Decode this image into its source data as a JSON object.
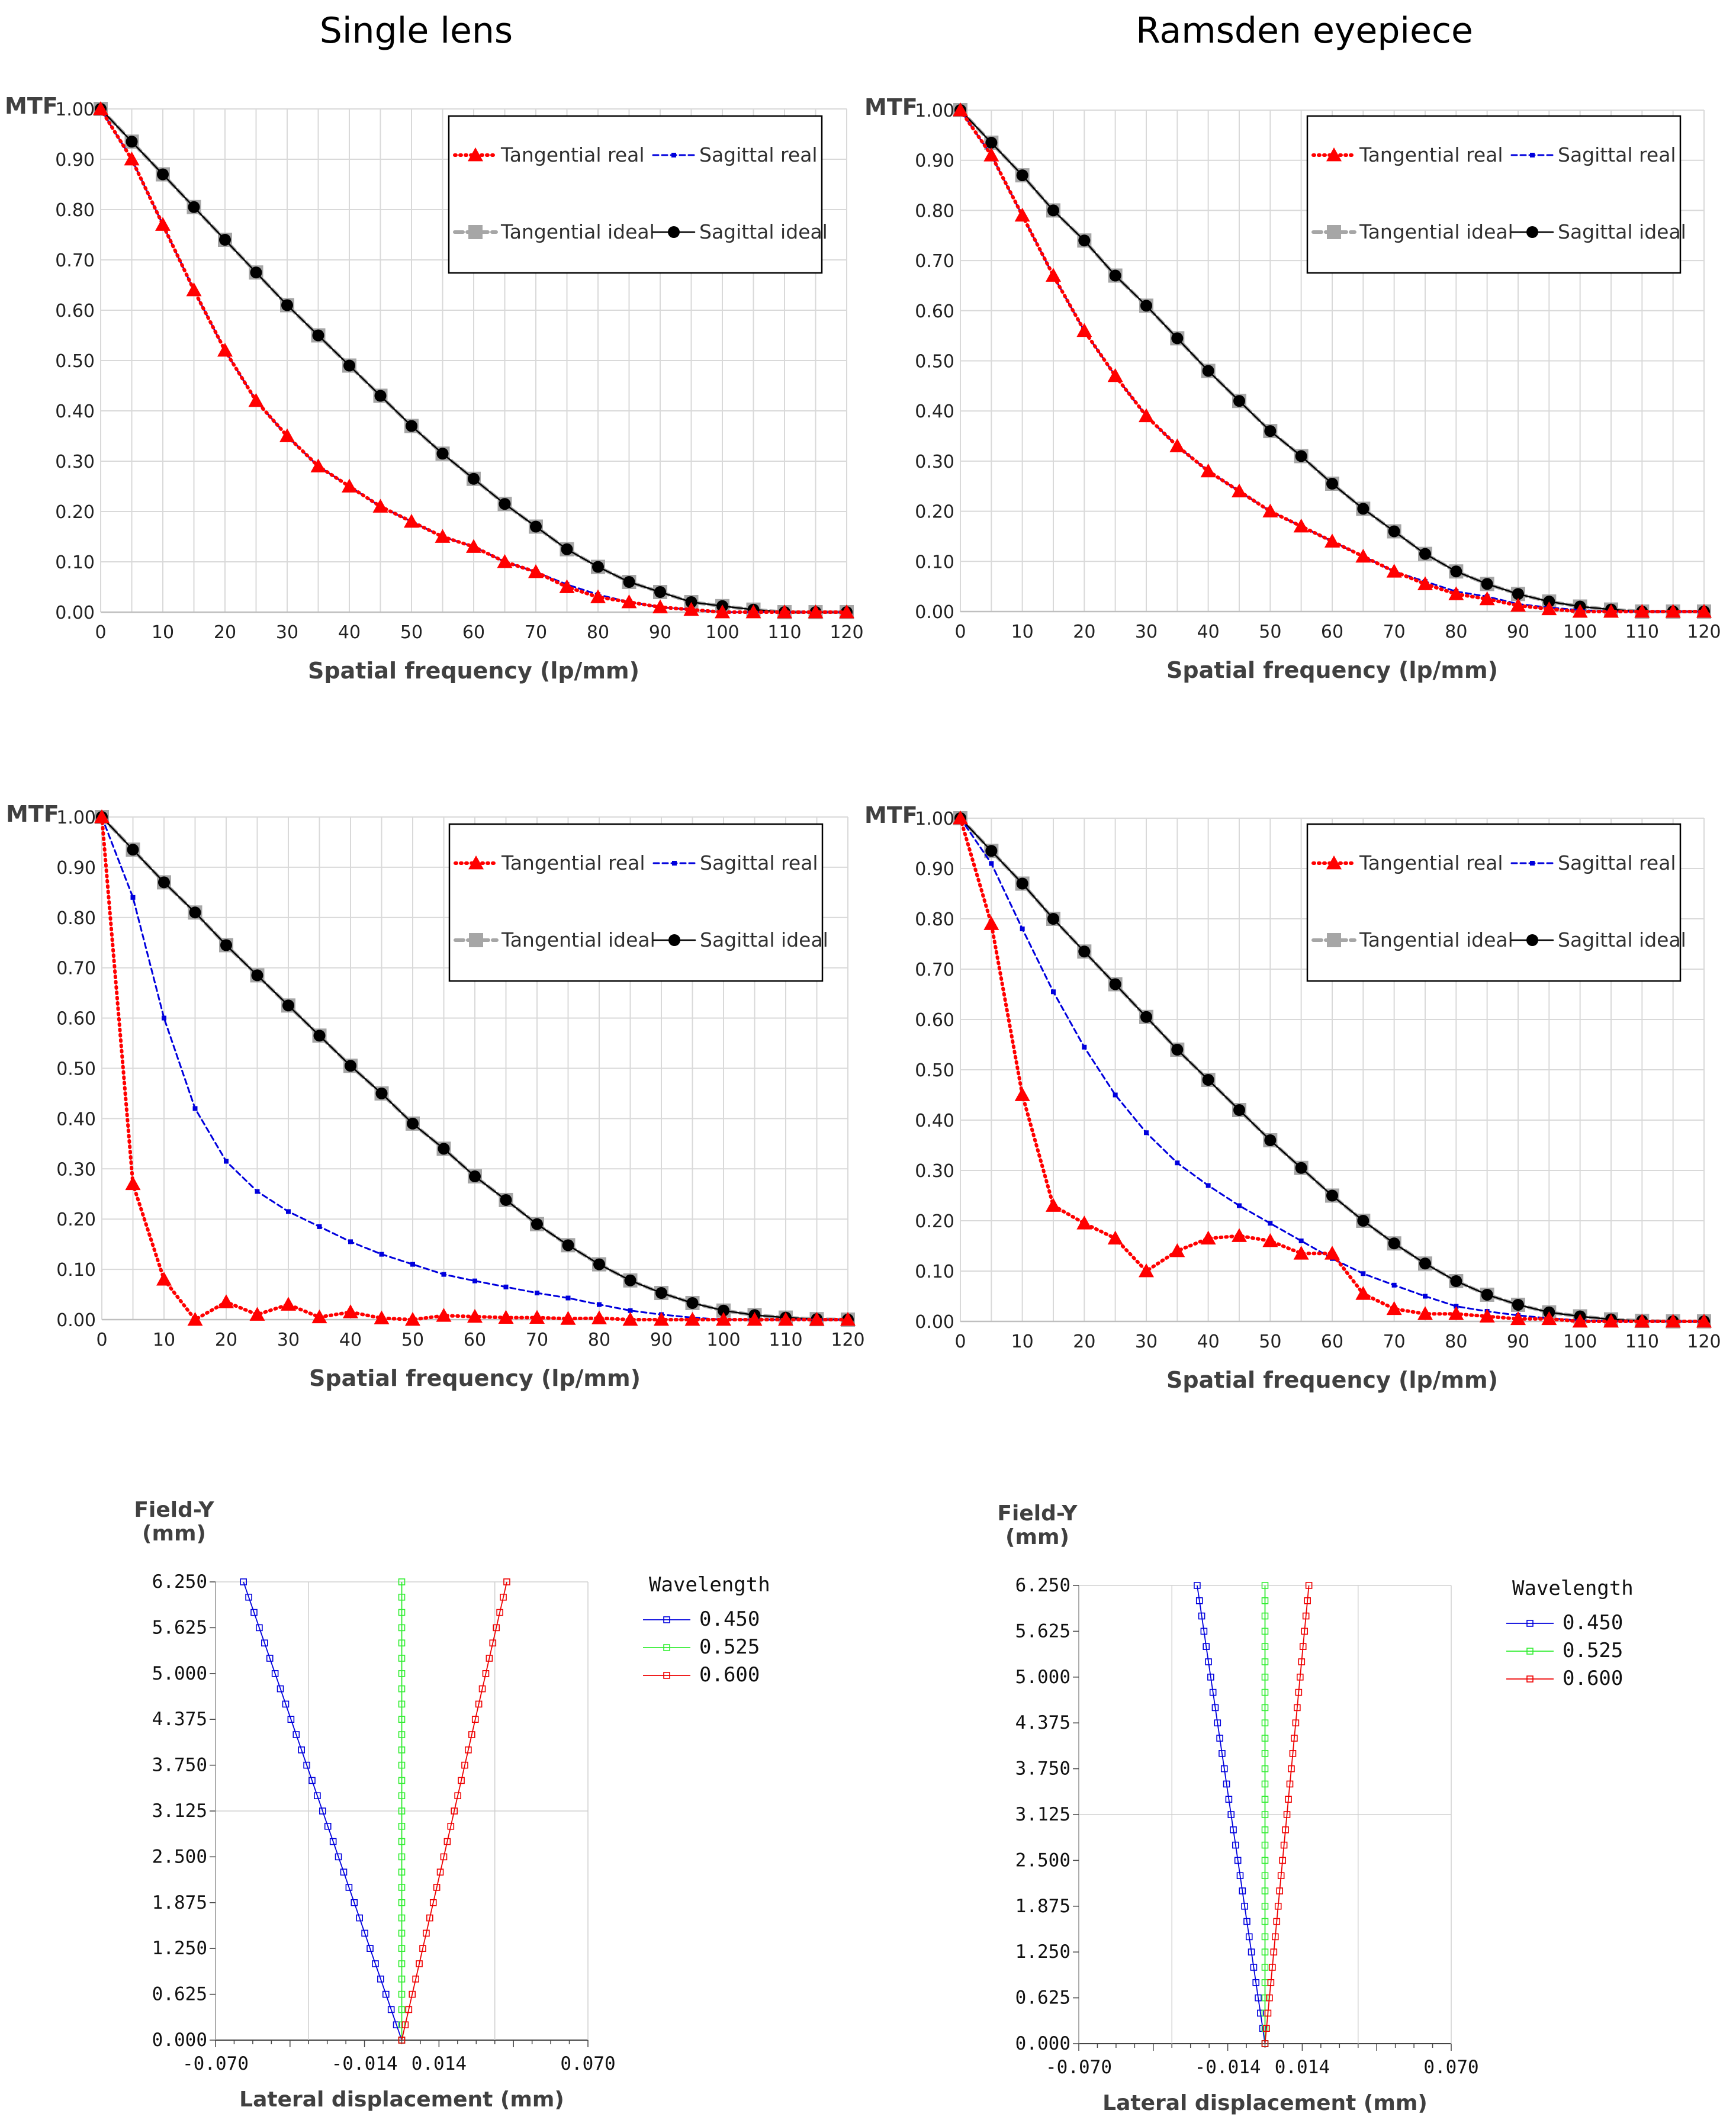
{
  "titles": {
    "left": "Single lens",
    "right": "Ramsden eyepiece"
  },
  "colors": {
    "tangential_real": "#ff0000",
    "sagittal_real": "#0000dd",
    "tangential_ideal": "#a6a6a6",
    "sagittal_ideal": "#000000",
    "wl_450": "#0000dd",
    "wl_525": "#33ee33",
    "wl_600": "#ee0000"
  },
  "chart_data": [
    {
      "id": "mtf-single-top",
      "type": "line",
      "title": "Single lens",
      "ylabel": "MTF",
      "xlabel": "Spatial frequency (lp/mm)",
      "xlim": [
        0,
        120
      ],
      "ylim": [
        0,
        1
      ],
      "x_ticks": [
        "0",
        "10",
        "20",
        "30",
        "40",
        "50",
        "60",
        "70",
        "80",
        "90",
        "100",
        "110",
        "120"
      ],
      "y_ticks": [
        "0.00",
        "0.10",
        "0.20",
        "0.30",
        "0.40",
        "0.50",
        "0.60",
        "0.70",
        "0.80",
        "0.90",
        "1.00"
      ],
      "grid": true,
      "legend": [
        "Tangential real",
        "Sagittal real",
        "Tangential ideal",
        "Sagittal ideal"
      ],
      "x": [
        0,
        5,
        10,
        15,
        20,
        25,
        30,
        35,
        40,
        45,
        50,
        55,
        60,
        65,
        70,
        75,
        80,
        85,
        90,
        95,
        100,
        105,
        110,
        115,
        120
      ],
      "series": [
        {
          "name": "Tangential real",
          "values": [
            1.0,
            0.9,
            0.77,
            0.64,
            0.52,
            0.42,
            0.35,
            0.29,
            0.25,
            0.21,
            0.18,
            0.15,
            0.13,
            0.1,
            0.08,
            0.05,
            0.03,
            0.02,
            0.01,
            0.005,
            0.0,
            0.0,
            0.0,
            0.0,
            0.0
          ]
        },
        {
          "name": "Sagittal real",
          "values": [
            1.0,
            0.9,
            0.77,
            0.64,
            0.52,
            0.42,
            0.35,
            0.29,
            0.25,
            0.21,
            0.18,
            0.15,
            0.13,
            0.1,
            0.08,
            0.055,
            0.035,
            0.02,
            0.01,
            0.005,
            0.0,
            0.0,
            0.0,
            0.0,
            0.0
          ]
        },
        {
          "name": "Tangential ideal",
          "values": [
            1.0,
            0.935,
            0.87,
            0.805,
            0.74,
            0.675,
            0.61,
            0.55,
            0.49,
            0.43,
            0.37,
            0.315,
            0.265,
            0.215,
            0.17,
            0.125,
            0.09,
            0.06,
            0.04,
            0.02,
            0.012,
            0.005,
            0.0,
            0.0,
            0.0
          ]
        },
        {
          "name": "Sagittal ideal",
          "values": [
            1.0,
            0.935,
            0.87,
            0.805,
            0.74,
            0.675,
            0.61,
            0.55,
            0.49,
            0.43,
            0.37,
            0.315,
            0.265,
            0.215,
            0.17,
            0.125,
            0.09,
            0.06,
            0.04,
            0.02,
            0.012,
            0.005,
            0.0,
            0.0,
            0.0
          ]
        }
      ]
    },
    {
      "id": "mtf-ramsden-top",
      "type": "line",
      "title": "Ramsden eyepiece",
      "ylabel": "MTF",
      "xlabel": "Spatial frequency (lp/mm)",
      "xlim": [
        0,
        120
      ],
      "ylim": [
        0,
        1
      ],
      "x_ticks": [
        "0",
        "10",
        "20",
        "30",
        "40",
        "50",
        "60",
        "70",
        "80",
        "90",
        "100",
        "110",
        "120"
      ],
      "y_ticks": [
        "0.00",
        "0.10",
        "0.20",
        "0.30",
        "0.40",
        "0.50",
        "0.60",
        "0.70",
        "0.80",
        "0.90",
        "1.00"
      ],
      "grid": true,
      "legend": [
        "Tangential real",
        "Sagittal real",
        "Tangential ideal",
        "Sagittal ideal"
      ],
      "x": [
        0,
        5,
        10,
        15,
        20,
        25,
        30,
        35,
        40,
        45,
        50,
        55,
        60,
        65,
        70,
        75,
        80,
        85,
        90,
        95,
        100,
        105,
        110,
        115,
        120
      ],
      "series": [
        {
          "name": "Tangential real",
          "values": [
            1.0,
            0.91,
            0.79,
            0.67,
            0.56,
            0.47,
            0.39,
            0.33,
            0.28,
            0.24,
            0.2,
            0.17,
            0.14,
            0.11,
            0.08,
            0.055,
            0.035,
            0.025,
            0.012,
            0.005,
            0.0,
            0.0,
            0.0,
            0.0,
            0.0
          ]
        },
        {
          "name": "Sagittal real",
          "values": [
            1.0,
            0.91,
            0.79,
            0.67,
            0.56,
            0.47,
            0.39,
            0.33,
            0.28,
            0.24,
            0.2,
            0.17,
            0.14,
            0.11,
            0.08,
            0.06,
            0.04,
            0.03,
            0.015,
            0.008,
            0.003,
            0.0,
            0.0,
            0.0,
            0.0
          ]
        },
        {
          "name": "Tangential ideal",
          "values": [
            1.0,
            0.935,
            0.87,
            0.8,
            0.74,
            0.67,
            0.61,
            0.545,
            0.48,
            0.42,
            0.36,
            0.31,
            0.255,
            0.205,
            0.16,
            0.115,
            0.08,
            0.055,
            0.035,
            0.02,
            0.01,
            0.004,
            0.0,
            0.0,
            0.0
          ]
        },
        {
          "name": "Sagittal ideal",
          "values": [
            1.0,
            0.935,
            0.87,
            0.8,
            0.74,
            0.67,
            0.61,
            0.545,
            0.48,
            0.42,
            0.36,
            0.31,
            0.255,
            0.205,
            0.16,
            0.115,
            0.08,
            0.055,
            0.035,
            0.02,
            0.01,
            0.004,
            0.0,
            0.0,
            0.0
          ]
        }
      ]
    },
    {
      "id": "mtf-single-mid",
      "type": "line",
      "title": "",
      "ylabel": "MTF",
      "xlabel": "Spatial frequency (lp/mm)",
      "xlim": [
        0,
        120
      ],
      "ylim": [
        0,
        1
      ],
      "x_ticks": [
        "0",
        "10",
        "20",
        "30",
        "40",
        "50",
        "60",
        "70",
        "80",
        "90",
        "100",
        "110",
        "120"
      ],
      "y_ticks": [
        "0.00",
        "0.10",
        "0.20",
        "0.30",
        "0.40",
        "0.50",
        "0.60",
        "0.70",
        "0.80",
        "0.90",
        "1.00"
      ],
      "grid": true,
      "legend": [
        "Tangential real",
        "Sagittal real",
        "Tangential ideal",
        "Sagittal ideal"
      ],
      "x": [
        0,
        5,
        10,
        15,
        20,
        25,
        30,
        35,
        40,
        45,
        50,
        55,
        60,
        65,
        70,
        75,
        80,
        85,
        90,
        95,
        100,
        105,
        110,
        115,
        120
      ],
      "series": [
        {
          "name": "Tangential real",
          "values": [
            1.0,
            0.27,
            0.08,
            0.0,
            0.035,
            0.01,
            0.03,
            0.005,
            0.015,
            0.003,
            0.0,
            0.008,
            0.006,
            0.004,
            0.004,
            0.002,
            0.003,
            0.0,
            0.0,
            0.0,
            0.0,
            0.0,
            0.0,
            0.0,
            0.0
          ]
        },
        {
          "name": "Sagittal real",
          "values": [
            1.0,
            0.84,
            0.6,
            0.42,
            0.315,
            0.255,
            0.215,
            0.185,
            0.155,
            0.13,
            0.11,
            0.09,
            0.077,
            0.065,
            0.053,
            0.043,
            0.03,
            0.018,
            0.01,
            0.004,
            0.0,
            0.0,
            0.0,
            0.0,
            0.0
          ]
        },
        {
          "name": "Tangential ideal",
          "values": [
            1.0,
            0.935,
            0.87,
            0.81,
            0.745,
            0.685,
            0.625,
            0.565,
            0.505,
            0.45,
            0.39,
            0.34,
            0.285,
            0.238,
            0.19,
            0.148,
            0.11,
            0.078,
            0.053,
            0.033,
            0.018,
            0.009,
            0.004,
            0.001,
            0.0
          ]
        },
        {
          "name": "Sagittal ideal",
          "values": [
            1.0,
            0.935,
            0.87,
            0.81,
            0.745,
            0.685,
            0.625,
            0.565,
            0.505,
            0.45,
            0.39,
            0.34,
            0.285,
            0.238,
            0.19,
            0.148,
            0.11,
            0.078,
            0.053,
            0.033,
            0.018,
            0.009,
            0.004,
            0.001,
            0.0
          ]
        }
      ]
    },
    {
      "id": "mtf-ramsden-mid",
      "type": "line",
      "title": "",
      "ylabel": "MTF",
      "xlabel": "Spatial frequency (lp/mm)",
      "xlim": [
        0,
        120
      ],
      "ylim": [
        0,
        1
      ],
      "x_ticks": [
        "0",
        "10",
        "20",
        "30",
        "40",
        "50",
        "60",
        "70",
        "80",
        "90",
        "100",
        "110",
        "120"
      ],
      "y_ticks": [
        "0.00",
        "0.10",
        "0.20",
        "0.30",
        "0.40",
        "0.50",
        "0.60",
        "0.70",
        "0.80",
        "0.90",
        "1.00"
      ],
      "grid": true,
      "legend": [
        "Tangential real",
        "Sagittal real",
        "Tangential ideal",
        "Sagittal ideal"
      ],
      "x": [
        0,
        5,
        10,
        15,
        20,
        25,
        30,
        35,
        40,
        45,
        50,
        55,
        60,
        65,
        70,
        75,
        80,
        85,
        90,
        95,
        100,
        105,
        110,
        115,
        120
      ],
      "series": [
        {
          "name": "Tangential real",
          "values": [
            1.0,
            0.79,
            0.45,
            0.23,
            0.195,
            0.165,
            0.1,
            0.14,
            0.165,
            0.17,
            0.16,
            0.135,
            0.135,
            0.055,
            0.025,
            0.015,
            0.015,
            0.01,
            0.005,
            0.005,
            0.0,
            0.0,
            0.0,
            0.0,
            0.0
          ]
        },
        {
          "name": "Sagittal real",
          "values": [
            1.0,
            0.91,
            0.78,
            0.655,
            0.545,
            0.45,
            0.375,
            0.315,
            0.27,
            0.23,
            0.195,
            0.16,
            0.125,
            0.095,
            0.072,
            0.05,
            0.03,
            0.02,
            0.012,
            0.006,
            0.002,
            0.0,
            0.0,
            0.0,
            0.0
          ]
        },
        {
          "name": "Tangential ideal",
          "values": [
            1.0,
            0.935,
            0.87,
            0.8,
            0.735,
            0.67,
            0.605,
            0.54,
            0.48,
            0.42,
            0.36,
            0.305,
            0.25,
            0.2,
            0.155,
            0.115,
            0.08,
            0.053,
            0.033,
            0.018,
            0.01,
            0.004,
            0.001,
            0.0,
            0.0
          ]
        },
        {
          "name": "Sagittal ideal",
          "values": [
            1.0,
            0.935,
            0.87,
            0.8,
            0.735,
            0.67,
            0.605,
            0.54,
            0.48,
            0.42,
            0.36,
            0.305,
            0.25,
            0.2,
            0.155,
            0.115,
            0.08,
            0.053,
            0.033,
            0.018,
            0.01,
            0.004,
            0.001,
            0.0,
            0.0
          ]
        }
      ]
    },
    {
      "id": "lateral-color-single",
      "type": "line",
      "title": "",
      "ylabel": "Field-Y (mm)",
      "xlabel": "Lateral displacement (mm)",
      "xlim": [
        -0.07,
        0.07
      ],
      "ylim": [
        0,
        6.25
      ],
      "x_ticks": [
        "-0.070",
        "-0.014",
        "0.014",
        "0.070"
      ],
      "y_ticks": [
        "0.000",
        "0.625",
        "1.250",
        "1.875",
        "2.500",
        "3.125",
        "3.750",
        "4.375",
        "5.000",
        "5.625",
        "6.250"
      ],
      "grid": true,
      "legend_title": "Wavelength",
      "legend": [
        "0.450",
        "0.525",
        "0.600"
      ],
      "series": [
        {
          "name": "0.450",
          "x_at_full_field": -0.0595,
          "x_at_zero": 0.0
        },
        {
          "name": "0.525",
          "x_at_full_field": 0.0,
          "x_at_zero": 0.0
        },
        {
          "name": "0.600",
          "x_at_full_field": 0.0395,
          "x_at_zero": 0.0
        }
      ]
    },
    {
      "id": "lateral-color-ramsden",
      "type": "line",
      "title": "",
      "ylabel": "Field-Y (mm)",
      "xlabel": "Lateral displacement (mm)",
      "xlim": [
        -0.07,
        0.07
      ],
      "ylim": [
        0,
        6.25
      ],
      "x_ticks": [
        "-0.070",
        "-0.014",
        "0.014",
        "0.070"
      ],
      "y_ticks": [
        "0.000",
        "0.625",
        "1.250",
        "1.875",
        "2.500",
        "3.125",
        "3.750",
        "4.375",
        "5.000",
        "5.625",
        "6.250"
      ],
      "grid": true,
      "legend_title": "Wavelength",
      "legend": [
        "0.450",
        "0.525",
        "0.600"
      ],
      "series": [
        {
          "name": "0.450",
          "x_at_full_field": -0.0255,
          "x_at_zero": 0.0
        },
        {
          "name": "0.525",
          "x_at_full_field": 0.0,
          "x_at_zero": 0.0
        },
        {
          "name": "0.600",
          "x_at_full_field": 0.0165,
          "x_at_zero": 0.0
        }
      ]
    }
  ]
}
